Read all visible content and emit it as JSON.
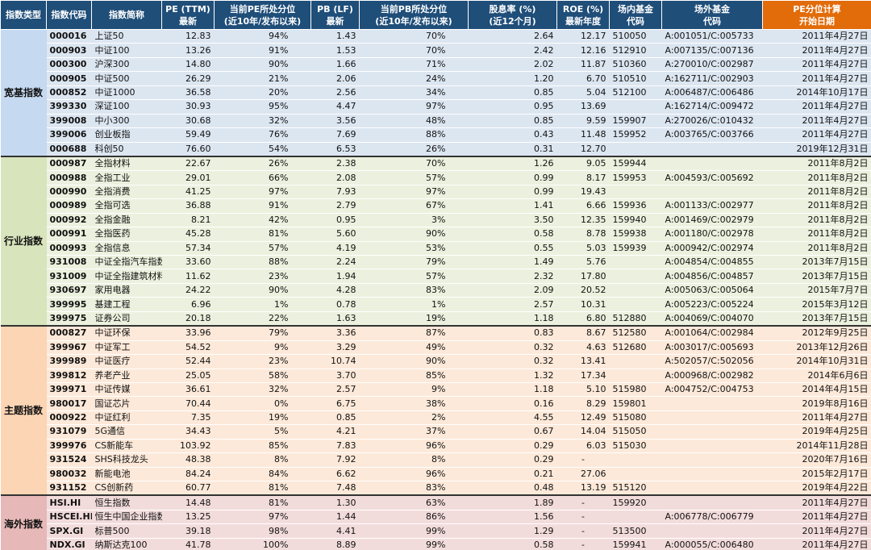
{
  "header": {
    "columns": [
      [
        "指数类型"
      ],
      [
        "指数代码"
      ],
      [
        "指数简称"
      ],
      [
        "PE (TTM)",
        "最新"
      ],
      [
        "当前PE所处分位",
        "(近10年/发布以来)"
      ],
      [
        "PB (LF)",
        "最新"
      ],
      [
        "当前PB所处分位",
        "(近10年/发布以来)"
      ],
      [
        "股息率 (%)",
        "(近12个月)"
      ],
      [
        "ROE (%)",
        "最新年度"
      ],
      [
        "场内基金",
        "代码"
      ],
      [
        "场外基金",
        "代码"
      ],
      [
        "PE分位计算",
        "开始日期"
      ]
    ]
  },
  "groups": [
    {
      "name": "宽基指数",
      "rows": [
        [
          "000016",
          "上证50",
          "12.83",
          "94%",
          "1.43",
          "70%",
          "2.64",
          "12.17",
          "510050",
          "A:001051/C:005733",
          "2011年4月27日"
        ],
        [
          "000903",
          "中证100",
          "13.26",
          "91%",
          "1.53",
          "70%",
          "2.42",
          "12.16",
          "512910",
          "A:007135/C:007136",
          "2011年4月27日"
        ],
        [
          "000300",
          "沪深300",
          "14.80",
          "90%",
          "1.66",
          "71%",
          "2.02",
          "11.87",
          "510360",
          "A:270010/C:002987",
          "2011年4月27日"
        ],
        [
          "000905",
          "中证500",
          "26.29",
          "21%",
          "2.06",
          "24%",
          "1.20",
          "6.70",
          "510510",
          "A:162711/C:002903",
          "2011年4月27日"
        ],
        [
          "000852",
          "中证1000",
          "36.58",
          "20%",
          "2.56",
          "34%",
          "0.85",
          "5.04",
          "512100",
          "A:006487/C:006486",
          "2014年10月17日"
        ],
        [
          "399330",
          "深证100",
          "30.93",
          "95%",
          "4.47",
          "97%",
          "0.95",
          "13.69",
          null,
          "A:162714/C:009472",
          "2011年4月27日"
        ],
        [
          "399008",
          "中小300",
          "30.68",
          "32%",
          "3.56",
          "48%",
          "0.85",
          "9.59",
          "159907",
          "A:270026/C:010432",
          "2011年4月27日"
        ],
        [
          "399006",
          "创业板指",
          "59.49",
          "76%",
          "7.69",
          "88%",
          "0.43",
          "11.48",
          "159952",
          "A:003765/C:003766",
          "2011年4月27日"
        ],
        [
          "000688",
          "科创50",
          "76.60",
          "54%",
          "6.53",
          "26%",
          "0.31",
          "12.70",
          null,
          null,
          "2019年12月31日"
        ]
      ]
    },
    {
      "name": "行业指数",
      "rows": [
        [
          "000987",
          "全指材料",
          "22.67",
          "26%",
          "2.38",
          "70%",
          "1.26",
          "9.05",
          "159944",
          null,
          "2011年8月2日"
        ],
        [
          "000988",
          "全指工业",
          "29.01",
          "66%",
          "2.08",
          "57%",
          "0.99",
          "8.17",
          "159953",
          "A:004593/C:005692",
          "2011年8月2日"
        ],
        [
          "000990",
          "全指消费",
          "41.25",
          "97%",
          "7.93",
          "97%",
          "0.99",
          "19.43",
          null,
          null,
          "2011年8月2日"
        ],
        [
          "000989",
          "全指可选",
          "36.88",
          "91%",
          "2.79",
          "67%",
          "1.41",
          "6.66",
          "159936",
          "A:001133/C:002977",
          "2011年8月2日"
        ],
        [
          "000992",
          "全指金融",
          "8.21",
          "42%",
          "0.95",
          "3%",
          "3.50",
          "12.35",
          "159940",
          "A:001469/C:002979",
          "2011年8月2日"
        ],
        [
          "000991",
          "全指医药",
          "45.28",
          "81%",
          "5.60",
          "90%",
          "0.58",
          "8.78",
          "159938",
          "A:001180/C:002978",
          "2011年8月2日"
        ],
        [
          "000993",
          "全指信息",
          "57.34",
          "57%",
          "4.19",
          "53%",
          "0.55",
          "5.03",
          "159939",
          "A:000942/C:002974",
          "2011年8月2日"
        ],
        [
          "931008",
          "中证全指汽车指数",
          "33.60",
          "88%",
          "2.24",
          "79%",
          "1.49",
          "5.76",
          null,
          "A:004854/C:004855",
          "2013年7月15日"
        ],
        [
          "931009",
          "中证全指建筑材料",
          "11.62",
          "23%",
          "1.94",
          "57%",
          "2.32",
          "17.80",
          null,
          "A:004856/C:004857",
          "2013年7月15日"
        ],
        [
          "930697",
          "家用电器",
          "24.22",
          "90%",
          "4.28",
          "83%",
          "2.09",
          "20.52",
          null,
          "A:005063/C:005064",
          "2015年7月7日"
        ],
        [
          "399995",
          "基建工程",
          "6.96",
          "1%",
          "0.78",
          "1%",
          "2.57",
          "10.31",
          null,
          "A:005223/C:005224",
          "2015年3月12日"
        ],
        [
          "399975",
          "证券公司",
          "20.18",
          "22%",
          "1.63",
          "19%",
          "1.18",
          "6.80",
          "512880",
          "A:004069/C:004070",
          "2013年7月15日"
        ]
      ]
    },
    {
      "name": "主题指数",
      "rows": [
        [
          "000827",
          "中证环保",
          "33.96",
          "79%",
          "3.36",
          "87%",
          "0.83",
          "8.67",
          "512580",
          "A:001064/C:002984",
          "2012年9月25日"
        ],
        [
          "399967",
          "中证军工",
          "54.52",
          "9%",
          "3.29",
          "49%",
          "0.32",
          "4.63",
          "512680",
          "A:003017/C:005693",
          "2013年12月26日"
        ],
        [
          "399989",
          "中证医疗",
          "52.44",
          "23%",
          "10.74",
          "90%",
          "0.32",
          "13.41",
          null,
          "A:502057/C:502056",
          "2014年10月31日"
        ],
        [
          "399812",
          "养老产业",
          "25.05",
          "58%",
          "3.70",
          "85%",
          "1.32",
          "17.34",
          null,
          "A:000968/C:002982",
          "2014年6月6日"
        ],
        [
          "399971",
          "中证传媒",
          "36.61",
          "32%",
          "2.57",
          "9%",
          "1.18",
          "5.10",
          "515980",
          "A:004752/C:004753",
          "2014年4月15日"
        ],
        [
          "980017",
          "国证芯片",
          "70.44",
          "0%",
          "6.75",
          "38%",
          "0.16",
          "8.29",
          "159801",
          null,
          "2019年8月16日"
        ],
        [
          "000922",
          "中证红利",
          "7.35",
          "19%",
          "0.85",
          "2%",
          "4.55",
          "12.49",
          "515080",
          null,
          "2011年4月27日"
        ],
        [
          "931079",
          "5G通信",
          "34.43",
          "5%",
          "4.21",
          "37%",
          "0.67",
          "14.04",
          "515050",
          null,
          "2019年4月25日"
        ],
        [
          "399976",
          "CS新能车",
          "103.92",
          "85%",
          "7.83",
          "96%",
          "0.29",
          "6.03",
          "515030",
          null,
          "2014年11月28日"
        ],
        [
          "931524",
          "SHS科技龙头",
          "48.38",
          "8%",
          "7.92",
          "8%",
          "0.29",
          "-",
          null,
          null,
          "2020年7月16日"
        ],
        [
          "980032",
          "新能电池",
          "84.24",
          "84%",
          "6.62",
          "96%",
          "0.21",
          "27.06",
          null,
          null,
          "2015年2月17日"
        ],
        [
          "931152",
          "CS创新药",
          "60.77",
          "81%",
          "7.48",
          "83%",
          "0.48",
          "13.19",
          "515120",
          null,
          "2019年4月22日"
        ]
      ]
    },
    {
      "name": "海外指数",
      "rows": [
        [
          "HSI.HI",
          "恒生指数",
          "14.48",
          "81%",
          "1.30",
          "63%",
          "1.89",
          "-",
          "159920",
          null,
          "2011年4月27日"
        ],
        [
          "HSCEI.HI",
          "恒生中国企业指数",
          "13.25",
          "97%",
          "1.44",
          "86%",
          "1.56",
          "-",
          null,
          "A:006778/C:006779",
          "2011年4月27日"
        ],
        [
          "SPX.GI",
          "标普500",
          "39.18",
          "98%",
          "4.41",
          "99%",
          "1.29",
          "-",
          "513500",
          null,
          "2011年4月27日"
        ],
        [
          "NDX.GI",
          "纳斯达克100",
          "41.78",
          "100%",
          "8.89",
          "99%",
          "0.58",
          "-",
          "159941",
          "A:000055/C:006480",
          "2011年4月27日"
        ]
      ]
    }
  ]
}
